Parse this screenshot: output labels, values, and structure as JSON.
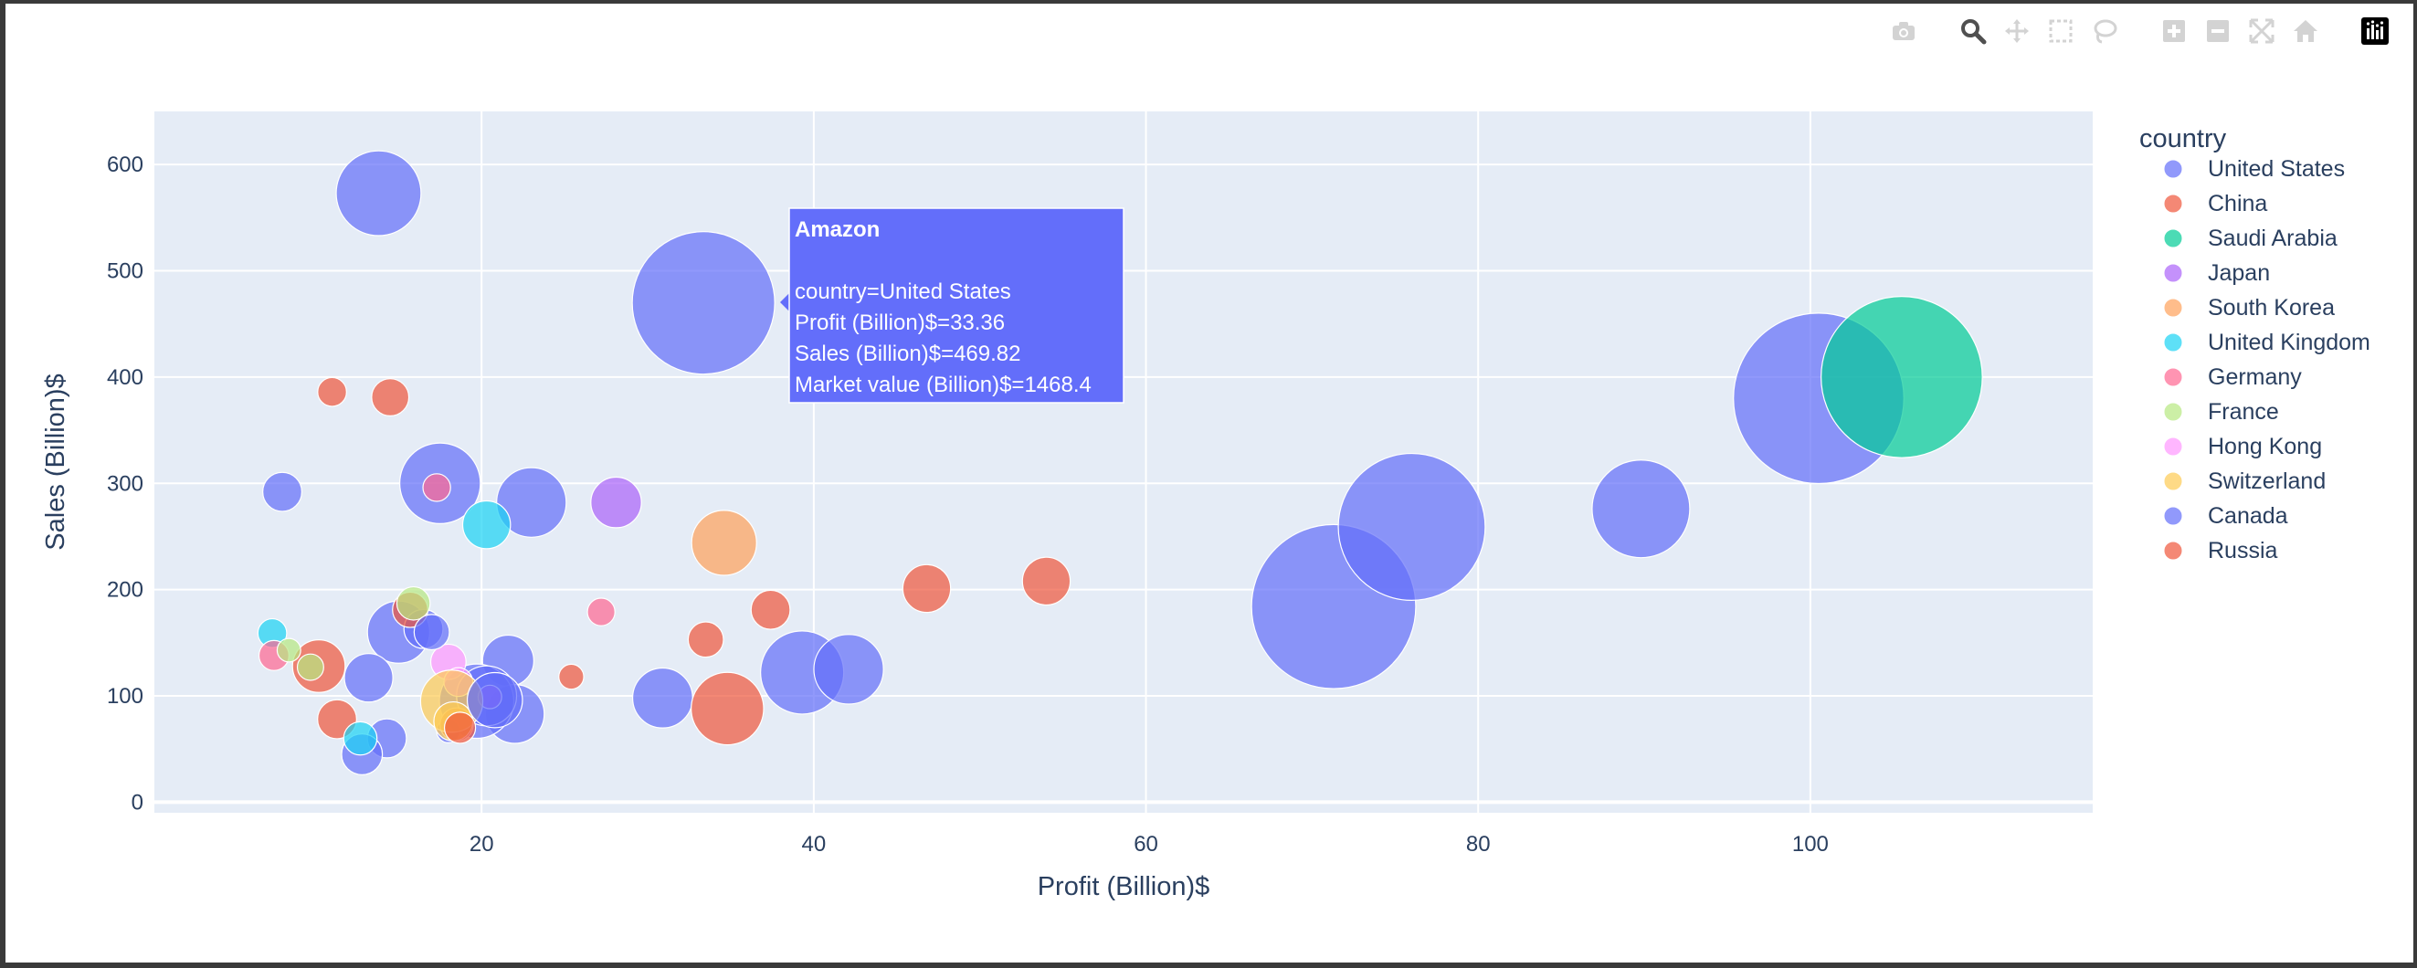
{
  "modebar": {
    "buttons": [
      {
        "icon": "camera-icon",
        "group": 0
      },
      {
        "icon": "zoom-icon",
        "group": 1,
        "active": true
      },
      {
        "icon": "pan-icon",
        "group": 1
      },
      {
        "icon": "box-select-icon",
        "group": 1
      },
      {
        "icon": "lasso-select-icon",
        "group": 1
      },
      {
        "icon": "zoom-in-icon",
        "group": 2
      },
      {
        "icon": "zoom-out-icon",
        "group": 2
      },
      {
        "icon": "autoscale-icon",
        "group": 2
      },
      {
        "icon": "reset-axes-icon",
        "group": 2
      },
      {
        "icon": "plotly-logo-icon",
        "group": 3
      }
    ]
  },
  "colors": {
    "plot_bg": "#e5ecf6",
    "grid": "#ffffff",
    "text": "#2a3f5f",
    "modebar_icon": "#d3d3d3",
    "modebar_active": "#505050"
  },
  "chart_data": {
    "type": "scatter",
    "subtype": "bubble",
    "title": "",
    "xlabel": "Profit (Billion)$",
    "ylabel": "Sales (Billion)$",
    "xlim": [
      0.3,
      117
    ],
    "ylim": [
      -10,
      650
    ],
    "x_ticks": [
      20,
      40,
      60,
      80,
      100
    ],
    "y_ticks": [
      0,
      100,
      200,
      300,
      400,
      500,
      600
    ],
    "grid": true,
    "legend": {
      "title": "country",
      "position": "right"
    },
    "series": [
      {
        "name": "United States",
        "color": "#636efa",
        "points": [
          {
            "x": 13.8,
            "y": 573,
            "mv": 520
          },
          {
            "x": 33.36,
            "y": 469.82,
            "mv": 1468.4
          },
          {
            "x": 100.5,
            "y": 380,
            "mv": 2100
          },
          {
            "x": 71.3,
            "y": 184,
            "mv": 1950
          },
          {
            "x": 76,
            "y": 259,
            "mv": 1560
          },
          {
            "x": 89.8,
            "y": 276,
            "mv": 690
          },
          {
            "x": 8,
            "y": 292,
            "mv": 110
          },
          {
            "x": 17.5,
            "y": 300,
            "mv": 470
          },
          {
            "x": 23,
            "y": 282,
            "mv": 350
          },
          {
            "x": 39.3,
            "y": 122,
            "mv": 500
          },
          {
            "x": 42.1,
            "y": 125,
            "mv": 350
          },
          {
            "x": 30.9,
            "y": 98,
            "mv": 260
          },
          {
            "x": 21.6,
            "y": 133,
            "mv": 190
          },
          {
            "x": 22,
            "y": 83,
            "mv": 250
          },
          {
            "x": 19.7,
            "y": 95,
            "mv": 400
          },
          {
            "x": 20.3,
            "y": 100,
            "mv": 260
          },
          {
            "x": 15,
            "y": 160,
            "mv": 280
          },
          {
            "x": 16.5,
            "y": 163,
            "mv": 110
          },
          {
            "x": 13.2,
            "y": 117,
            "mv": 170
          },
          {
            "x": 14.3,
            "y": 60,
            "mv": 110
          },
          {
            "x": 18,
            "y": 67,
            "mv": 40
          },
          {
            "x": 12.8,
            "y": 45,
            "mv": 120
          }
        ]
      },
      {
        "name": "China",
        "color": "#ef553b",
        "points": [
          {
            "x": 11,
            "y": 386,
            "mv": 60
          },
          {
            "x": 14.5,
            "y": 381,
            "mv": 100
          },
          {
            "x": 34.8,
            "y": 88,
            "mv": 380
          },
          {
            "x": 46.8,
            "y": 201,
            "mv": 165
          },
          {
            "x": 54,
            "y": 208,
            "mv": 165
          },
          {
            "x": 37.4,
            "y": 181,
            "mv": 110
          },
          {
            "x": 33.5,
            "y": 153,
            "mv": 90
          },
          {
            "x": 25.4,
            "y": 118,
            "mv": 45
          },
          {
            "x": 10.2,
            "y": 128,
            "mv": 200
          },
          {
            "x": 11.3,
            "y": 78,
            "mv": 110
          },
          {
            "x": 15.7,
            "y": 181,
            "mv": 90
          },
          {
            "x": 18.5,
            "y": 73,
            "mv": 80
          }
        ]
      },
      {
        "name": "Saudi Arabia",
        "color": "#00cc96",
        "points": [
          {
            "x": 105.5,
            "y": 400,
            "mv": 1880
          }
        ]
      },
      {
        "name": "Japan",
        "color": "#ab63fa",
        "points": [
          {
            "x": 28.1,
            "y": 282,
            "mv": 185
          },
          {
            "x": 20.5,
            "y": 99,
            "mv": 40
          }
        ]
      },
      {
        "name": "South Korea",
        "color": "#ffa15a",
        "points": [
          {
            "x": 34.6,
            "y": 244,
            "mv": 305
          }
        ]
      },
      {
        "name": "United Kingdom",
        "color": "#19d3f3",
        "points": [
          {
            "x": 20.3,
            "y": 261,
            "mv": 165
          },
          {
            "x": 7.4,
            "y": 159,
            "mv": 60
          },
          {
            "x": 12.7,
            "y": 60,
            "mv": 80
          }
        ]
      },
      {
        "name": "Germany",
        "color": "#ff6692",
        "points": [
          {
            "x": 27.2,
            "y": 179,
            "mv": 55
          },
          {
            "x": 7.5,
            "y": 138,
            "mv": 65
          },
          {
            "x": 17.3,
            "y": 296,
            "mv": 55
          }
        ]
      },
      {
        "name": "France",
        "color": "#b6e880",
        "points": [
          {
            "x": 15.9,
            "y": 187,
            "mv": 80
          },
          {
            "x": 8.4,
            "y": 143,
            "mv": 40
          },
          {
            "x": 9.7,
            "y": 127,
            "mv": 50
          }
        ]
      },
      {
        "name": "Hong Kong",
        "color": "#ff97ff",
        "points": [
          {
            "x": 18,
            "y": 132,
            "mv": 90
          },
          {
            "x": 18.6,
            "y": 113,
            "mv": 60
          }
        ]
      },
      {
        "name": "Switzerland",
        "color": "#fecb52",
        "points": [
          {
            "x": 18.2,
            "y": 95,
            "mv": 280
          },
          {
            "x": 18.3,
            "y": 76,
            "mv": 110
          }
        ]
      },
      {
        "name": "Canada",
        "color": "#636efa",
        "points": [
          {
            "x": 20.8,
            "y": 96,
            "mv": 220
          },
          {
            "x": 17,
            "y": 160,
            "mv": 90
          }
        ]
      },
      {
        "name": "Russia",
        "color": "#ef553b",
        "points": [
          {
            "x": 18.7,
            "y": 70,
            "mv": 70
          }
        ]
      }
    ],
    "hover": {
      "name": "Amazon",
      "lines": [
        "country=United States",
        "Profit (Billion)$=33.36",
        "Sales (Billion)$=469.82",
        "Market value (Billion)$=1468.4"
      ],
      "bg": "#636efa"
    }
  }
}
